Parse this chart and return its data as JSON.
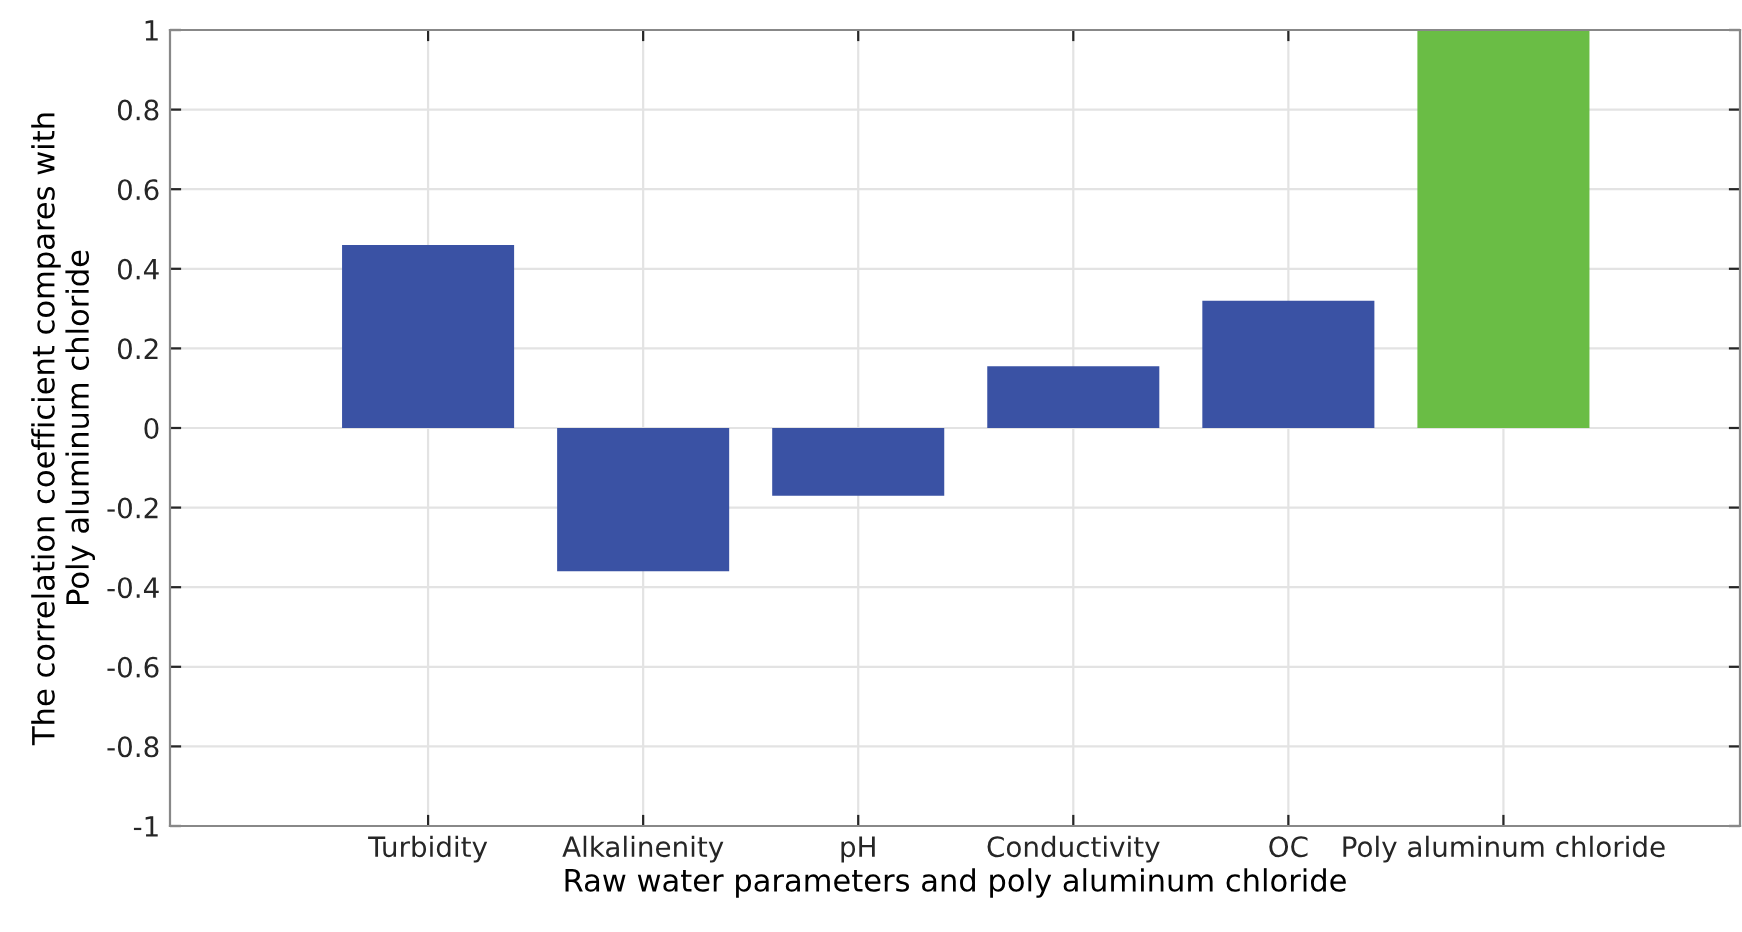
{
  "chart_data": {
    "type": "bar",
    "xlabel": "Raw water parameters and poly aluminum chloride",
    "ylabel": "The correlation coefficient compares with\nPoly aluminum chloride",
    "categories": [
      "Turbidity",
      "Alkalinenity",
      "pH",
      "Conductivity",
      "OC",
      "Poly aluminum chloride"
    ],
    "values": [
      0.46,
      -0.36,
      -0.17,
      0.155,
      0.32,
      1
    ],
    "colors": [
      "#3a52a4",
      "#3a52a4",
      "#3a52a4",
      "#3a52a4",
      "#3a52a4",
      "#6abd45"
    ],
    "ylim": [
      -1,
      1
    ],
    "yticks": [
      -1,
      -0.8,
      -0.6,
      -0.4,
      -0.2,
      0,
      0.2,
      0.4,
      0.6,
      0.8,
      1
    ],
    "grid": true
  }
}
